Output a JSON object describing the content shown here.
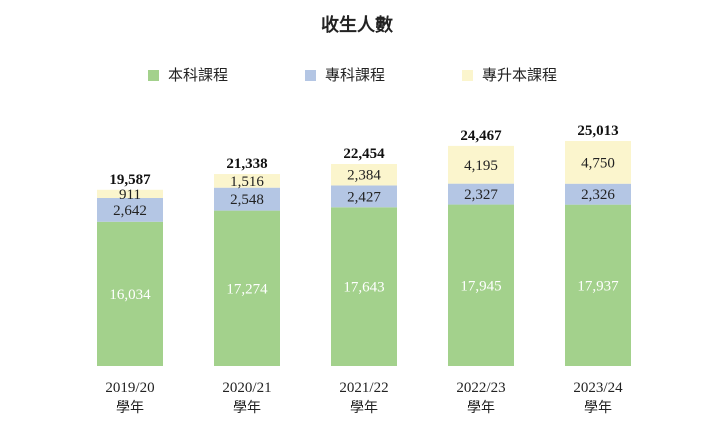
{
  "chart_data": {
    "type": "bar",
    "stacked": true,
    "title": "收生人數",
    "categories": [
      "2019/20",
      "2020/21",
      "2021/22",
      "2022/23",
      "2023/24"
    ],
    "category_suffix": "學年",
    "series": [
      {
        "name": "本科課程",
        "color": "#a3d18c",
        "label_color": "#ffffff",
        "values": [
          16034,
          17274,
          17643,
          17945,
          17937
        ]
      },
      {
        "name": "專科課程",
        "color": "#b4c6e4",
        "label_color": "#222222",
        "values": [
          2642,
          2548,
          2427,
          2327,
          2326
        ]
      },
      {
        "name": "專升本課程",
        "color": "#fbf5cd",
        "label_color": "#222222",
        "values": [
          911,
          1516,
          2384,
          4195,
          4750
        ]
      }
    ],
    "totals": [
      19587,
      21338,
      22454,
      24467,
      25013
    ],
    "legend_position": "top-center",
    "grid": false,
    "ylim": [
      0,
      25013
    ]
  }
}
